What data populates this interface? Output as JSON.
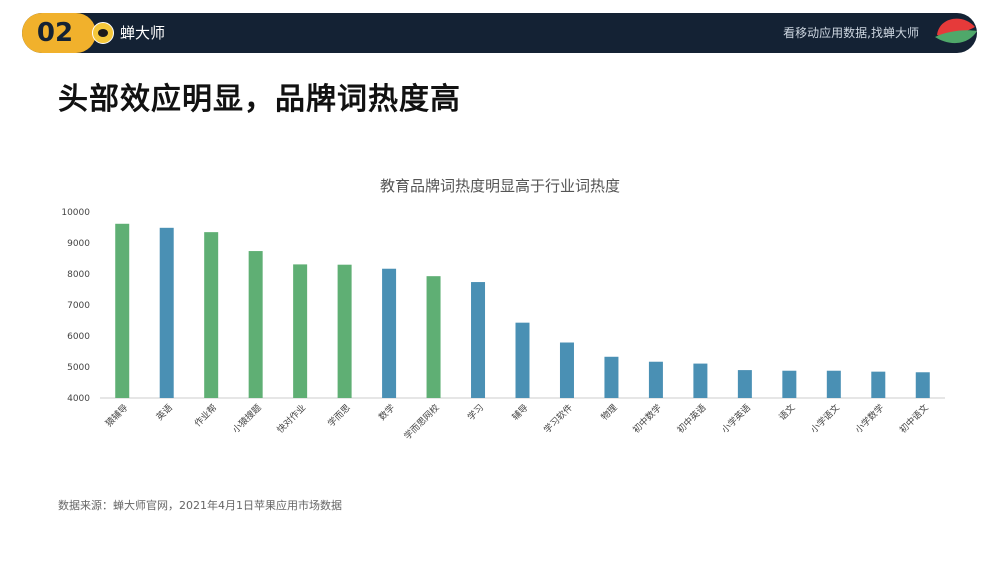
{
  "header": {
    "section_number": "02",
    "brand_name": "蝉大师",
    "slogan": "看移动应用数据,找蝉大师",
    "colors": {
      "bar": "#142234",
      "badge": "#f1b12c",
      "leaf_red": "#e63a3a",
      "leaf_green": "#4fa86a"
    }
  },
  "headline": "头部效应明显，品牌词热度高",
  "source_note": "数据来源：蝉大师官网，2021年4月1日苹果应用市场数据",
  "chart_data": {
    "type": "bar",
    "title": "教育品牌词热度明显高于行业词热度",
    "categories": [
      "猿辅导",
      "英语",
      "作业帮",
      "小猿搜题",
      "快对作业",
      "学而思",
      "数学",
      "学而思网校",
      "学习",
      "辅导",
      "学习软件",
      "物理",
      "初中数学",
      "初中英语",
      "小学英语",
      "语文",
      "小学语文",
      "小学数学",
      "初中语文"
    ],
    "values": [
      9620,
      9490,
      9350,
      8740,
      8310,
      8300,
      8170,
      7930,
      7740,
      6430,
      5790,
      5330,
      5170,
      5110,
      4900,
      4880,
      4880,
      4850,
      4830
    ],
    "bar_colors": [
      "#5faf74",
      "#4a90b4",
      "#5faf74",
      "#5faf74",
      "#5faf74",
      "#5faf74",
      "#4a90b4",
      "#5faf74",
      "#4a90b4",
      "#4a90b4",
      "#4a90b4",
      "#4a90b4",
      "#4a90b4",
      "#4a90b4",
      "#4a90b4",
      "#4a90b4",
      "#4a90b4",
      "#4a90b4",
      "#4a90b4"
    ],
    "ylim": [
      4000,
      10000
    ],
    "yticks": [
      4000,
      5000,
      6000,
      7000,
      8000,
      9000,
      10000
    ],
    "grid": false,
    "legend": "none",
    "xlabel": "",
    "ylabel": ""
  }
}
